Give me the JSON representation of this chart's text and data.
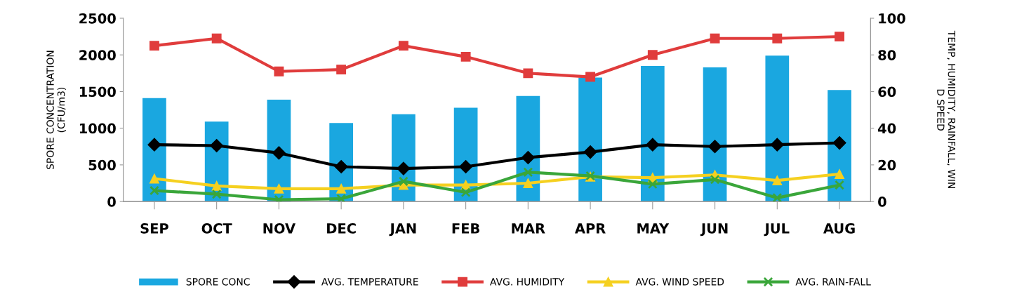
{
  "chart_data": {
    "type": "bar",
    "categories": [
      "SEP",
      "OCT",
      "NOV",
      "DEC",
      "JAN",
      "FEB",
      "MAR",
      "APR",
      "MAY",
      "JUN",
      "JUL",
      "AUG"
    ],
    "ylabel": "SPORE CONCENTRATION\n(CFU/m3)",
    "y2label": "TEMP, HUMIDITY, RAINFALL, WIN\nD SPEED",
    "ylim": [
      0,
      2500
    ],
    "yticks": [
      0,
      500,
      1000,
      1500,
      2000,
      2500
    ],
    "y2lim": [
      0,
      100
    ],
    "y2ticks": [
      0,
      20,
      40,
      60,
      80,
      100
    ],
    "grid": false,
    "legend": "bottom",
    "series": [
      {
        "name": "SPORE CONC",
        "color": "#1aa7e0",
        "values": [
          1410,
          1090,
          1390,
          1070,
          1190,
          1280,
          1440,
          1690,
          1850,
          1830,
          1990,
          1520
        ]
      },
      {
        "name": "AVG. TEMPERATURE",
        "type": "line",
        "axis": "y2",
        "color": "#000000",
        "marker": "diamond",
        "values": [
          31,
          30.5,
          26.5,
          19,
          18,
          19,
          24,
          27,
          31,
          30,
          31,
          32
        ]
      },
      {
        "name": "AVG. HUMIDITY",
        "type": "line",
        "axis": "y2",
        "color": "#e03c3c",
        "marker": "square",
        "values": [
          85,
          89,
          71,
          72,
          85,
          79,
          70,
          68,
          80,
          89,
          89,
          90
        ]
      },
      {
        "name": "AVG. WIND SPEED",
        "type": "line",
        "axis": "y2",
        "color": "#f5d020",
        "marker": "triangle",
        "values": [
          12.5,
          8.5,
          7,
          7,
          9,
          9,
          10,
          13.5,
          13,
          14.5,
          11.5,
          15
        ]
      },
      {
        "name": "AVG. RAIN-FALL",
        "type": "line",
        "axis": "y2",
        "color": "#3aa63a",
        "marker": "cross",
        "values": [
          6,
          4,
          1,
          1.5,
          11,
          5,
          16,
          14,
          9.5,
          12,
          2,
          9
        ]
      }
    ]
  }
}
